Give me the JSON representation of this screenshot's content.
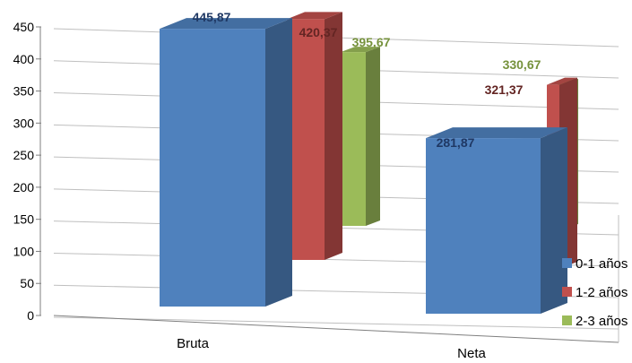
{
  "chart_data": {
    "type": "bar",
    "categories": [
      "Bruta",
      "Neta"
    ],
    "series": [
      {
        "name": "0-1 años",
        "values": [
          445.87,
          281.87
        ],
        "labels": [
          "445,87",
          "281,87"
        ],
        "color": "#4f81bd",
        "label_color": "#1f3864"
      },
      {
        "name": "1-2 años",
        "values": [
          420.37,
          321.37
        ],
        "labels": [
          "420,37",
          "321,37"
        ],
        "color": "#c0504d",
        "label_color": "#632523"
      },
      {
        "name": "2-3 años",
        "values": [
          395.67,
          330.67
        ],
        "labels": [
          "395,67",
          "330,67"
        ],
        "color": "#9bbb59",
        "label_color": "#76923c"
      }
    ],
    "yticks": [
      "0",
      "50",
      "100",
      "150",
      "200",
      "250",
      "300",
      "350",
      "400",
      "450"
    ],
    "ylim": [
      0,
      450
    ],
    "grid": true,
    "legend": "right"
  }
}
